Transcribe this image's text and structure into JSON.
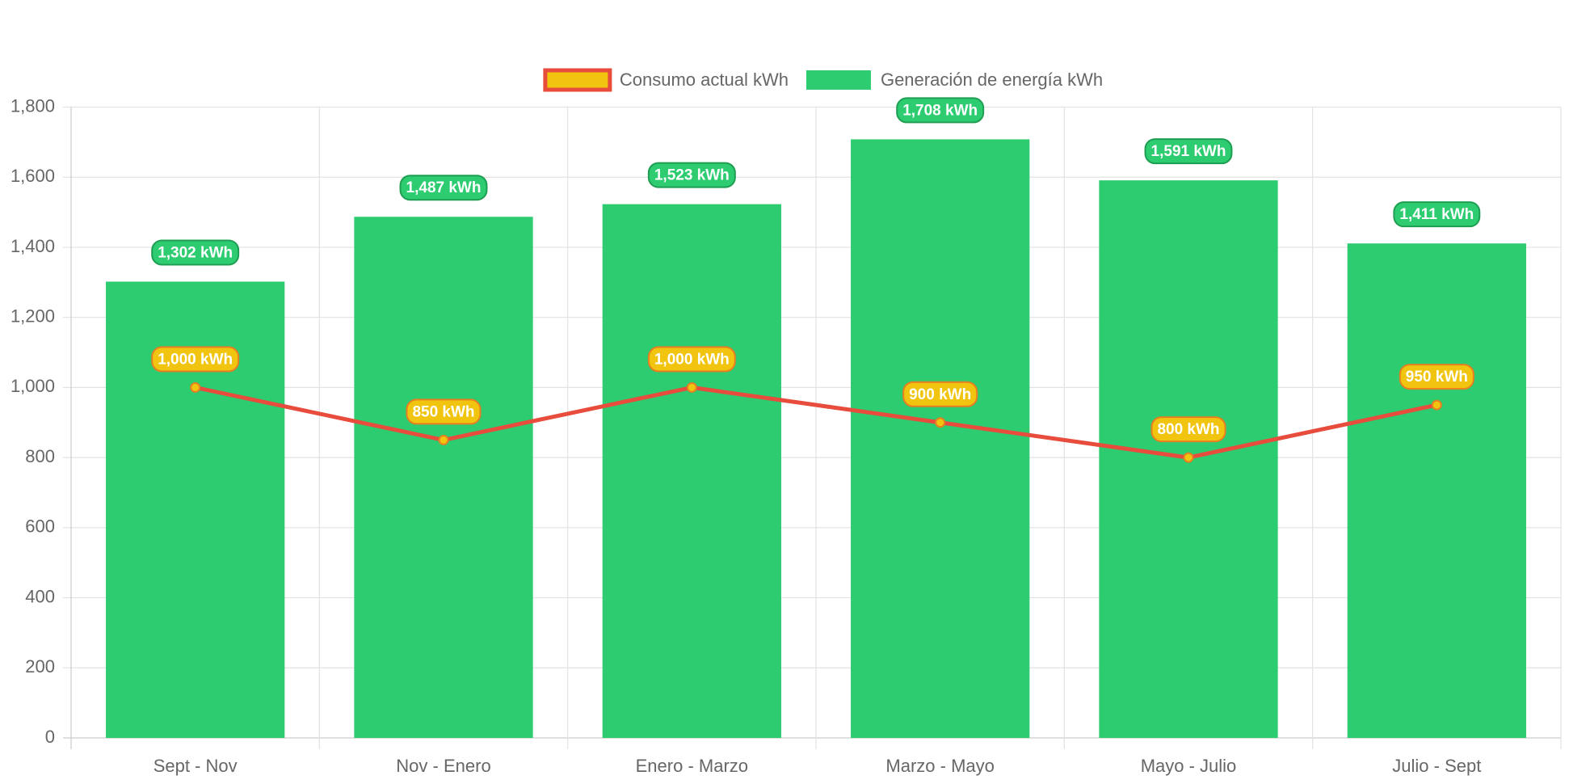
{
  "chart_data": {
    "type": "bar",
    "categories": [
      "Sept - Nov",
      "Nov - Enero",
      "Enero - Marzo",
      "Marzo - Mayo",
      "Mayo - Julio",
      "Julio - Sept"
    ],
    "series": [
      {
        "name": "Consumo actual kWh",
        "type": "line",
        "color": "#e74c3c",
        "point_color": "#f1c40f",
        "values": [
          1000,
          850,
          1000,
          900,
          800,
          950
        ],
        "value_labels": [
          "1,000 kWh",
          "850 kWh",
          "1,000 kWh",
          "900 kWh",
          "800 kWh",
          "950 kWh"
        ]
      },
      {
        "name": "Generación de energía kWh",
        "type": "bar",
        "color": "#2ecc71",
        "values": [
          1302,
          1487,
          1523,
          1708,
          1591,
          1411
        ],
        "value_labels": [
          "1,302 kWh",
          "1,487 kWh",
          "1,523 kWh",
          "1,708 kWh",
          "1,591 kWh",
          "1,411 kWh"
        ]
      }
    ],
    "ylim": [
      0,
      1800
    ],
    "yticks": [
      0,
      200,
      400,
      600,
      800,
      {
        "value": 1000,
        "label": "1,000"
      },
      {
        "value": 1200,
        "label": "1,200"
      },
      {
        "value": 1400,
        "label": "1,400"
      },
      {
        "value": 1600,
        "label": "1,600"
      },
      {
        "value": 1800,
        "label": "1,800"
      }
    ],
    "grid": true,
    "legend": "top"
  }
}
